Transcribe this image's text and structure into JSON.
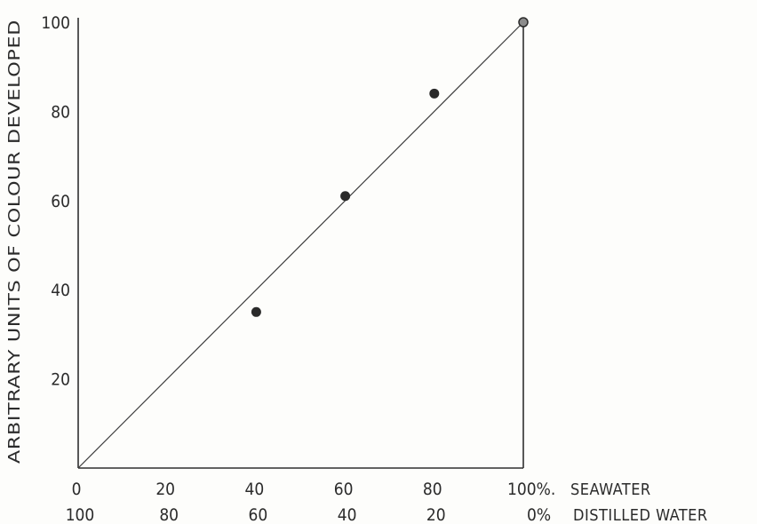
{
  "chart_data": {
    "type": "scatter",
    "ylabel": "ARBITRARY UNITS OF COLOUR DEVELOPED",
    "xlabel_primary": "SEAWATER",
    "xlabel_secondary": "DISTILLED WATER",
    "x_ticks_primary": [
      "0",
      "20",
      "40",
      "60",
      "80",
      "100%."
    ],
    "x_ticks_secondary": [
      "100",
      "80",
      "60",
      "40",
      "20",
      "0%"
    ],
    "y_ticks": [
      "20",
      "40",
      "60",
      "80",
      "100"
    ],
    "xlim": [
      0,
      100
    ],
    "ylim": [
      0,
      100
    ],
    "grid": false,
    "series": [
      {
        "points": [
          {
            "x": 40,
            "y": 35
          },
          {
            "x": 60,
            "y": 61
          },
          {
            "x": 80,
            "y": 84
          },
          {
            "x": 100,
            "y": 100
          }
        ]
      }
    ],
    "fit_line": {
      "from": [
        0,
        0
      ],
      "to": [
        100,
        100
      ]
    }
  }
}
